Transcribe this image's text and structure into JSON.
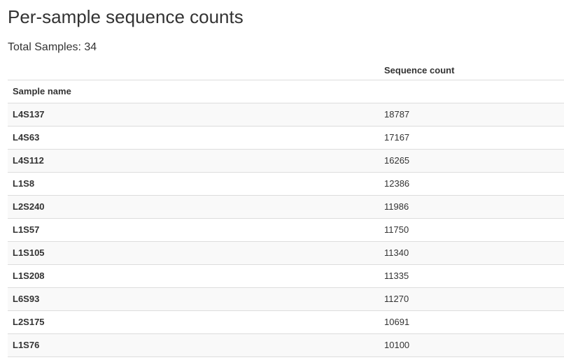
{
  "page": {
    "title": "Per-sample sequence counts",
    "total_label": "Total Samples: 34"
  },
  "table": {
    "value_header": "Sequence count",
    "index_header": "Sample name",
    "rows": [
      {
        "sample": "L4S137",
        "count": "18787"
      },
      {
        "sample": "L4S63",
        "count": "17167"
      },
      {
        "sample": "L4S112",
        "count": "16265"
      },
      {
        "sample": "L1S8",
        "count": "12386"
      },
      {
        "sample": "L2S240",
        "count": "11986"
      },
      {
        "sample": "L1S57",
        "count": "11750"
      },
      {
        "sample": "L1S105",
        "count": "11340"
      },
      {
        "sample": "L1S208",
        "count": "11335"
      },
      {
        "sample": "L6S93",
        "count": "11270"
      },
      {
        "sample": "L2S175",
        "count": "10691"
      },
      {
        "sample": "L1S76",
        "count": "10100"
      }
    ]
  }
}
